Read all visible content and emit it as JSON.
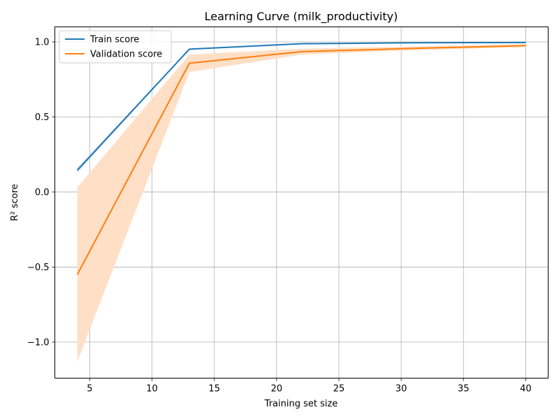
{
  "chart_data": {
    "type": "line",
    "title": "Learning Curve (milk_productivity)",
    "xlabel": "Training set size",
    "ylabel": "R² score",
    "x": [
      4,
      13,
      22,
      31,
      40
    ],
    "xlim": [
      2.2,
      41.8
    ],
    "ylim": [
      -1.24,
      1.1
    ],
    "xticks": [
      5,
      10,
      15,
      20,
      25,
      30,
      35,
      40
    ],
    "xtick_labels": [
      "5",
      "10",
      "15",
      "20",
      "25",
      "30",
      "35",
      "40"
    ],
    "yticks": [
      -1.0,
      -0.5,
      0.0,
      0.5,
      1.0
    ],
    "ytick_labels": [
      "−1.0",
      "−0.5",
      "0.0",
      "0.5",
      "1.0"
    ],
    "grid": true,
    "legend_position": "top-left",
    "series": [
      {
        "name": "Train score",
        "color": "#1f77b4",
        "band_color": "#c7dcee",
        "values": [
          0.145,
          0.952,
          0.988,
          0.994,
          0.996
        ],
        "lower": [
          0.13,
          0.95,
          0.986,
          0.993,
          0.995
        ],
        "upper": [
          0.16,
          0.955,
          0.99,
          0.996,
          0.998
        ]
      },
      {
        "name": "Validation score",
        "color": "#ff7f0e",
        "band_color": "#ffdfc6",
        "values": [
          -0.55,
          0.858,
          0.935,
          0.957,
          0.975
        ],
        "lower": [
          -1.13,
          0.8,
          0.915,
          0.945,
          0.965
        ],
        "upper": [
          0.03,
          0.915,
          0.955,
          0.97,
          0.985
        ]
      }
    ]
  }
}
